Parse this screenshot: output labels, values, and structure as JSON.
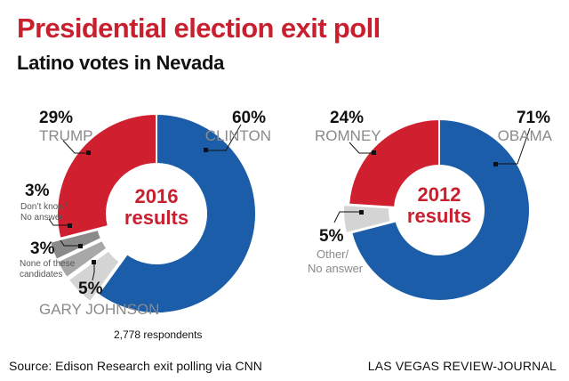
{
  "title": "Presidential election exit poll",
  "subtitle": "Latino votes in Nevada",
  "footnote": "2,778 respondents",
  "source": "Source: Edison Research exit polling via CNN",
  "credit": "LAS VEGAS REVIEW-JOURNAL",
  "colors": {
    "blue": "#1b5da8",
    "red": "#d0202f",
    "gray_dark": "#8a8a8a",
    "gray_mid": "#a8a8a8",
    "gray_light": "#d4d4d4",
    "accent": "#c8202f"
  },
  "chart_data": [
    {
      "type": "pie",
      "center_label": [
        "2016",
        "results"
      ],
      "slices": [
        {
          "pct_label": "60%",
          "label": "CLINTON",
          "value": 60,
          "color": "#1b5da8"
        },
        {
          "pct_label": "5%",
          "label": "GARY JOHNSON",
          "value": 5,
          "color": "#d4d4d4"
        },
        {
          "pct_label": "3%",
          "label": [
            "None of these",
            "candidates"
          ],
          "value": 3,
          "color": "#a8a8a8"
        },
        {
          "pct_label": "3%",
          "label": [
            "Don’t know/",
            "No answer"
          ],
          "value": 3,
          "color": "#8a8a8a"
        },
        {
          "pct_label": "29%",
          "label": "TRUMP",
          "value": 29,
          "color": "#d0202f"
        }
      ]
    },
    {
      "type": "pie",
      "center_label": [
        "2012",
        "results"
      ],
      "slices": [
        {
          "pct_label": "71%",
          "label": "OBAMA",
          "value": 71,
          "color": "#1b5da8"
        },
        {
          "pct_label": "5%",
          "label": [
            "Other/",
            "No answer"
          ],
          "value": 5,
          "color": "#d4d4d4"
        },
        {
          "pct_label": "24%",
          "label": "ROMNEY",
          "value": 24,
          "color": "#d0202f"
        }
      ]
    }
  ]
}
